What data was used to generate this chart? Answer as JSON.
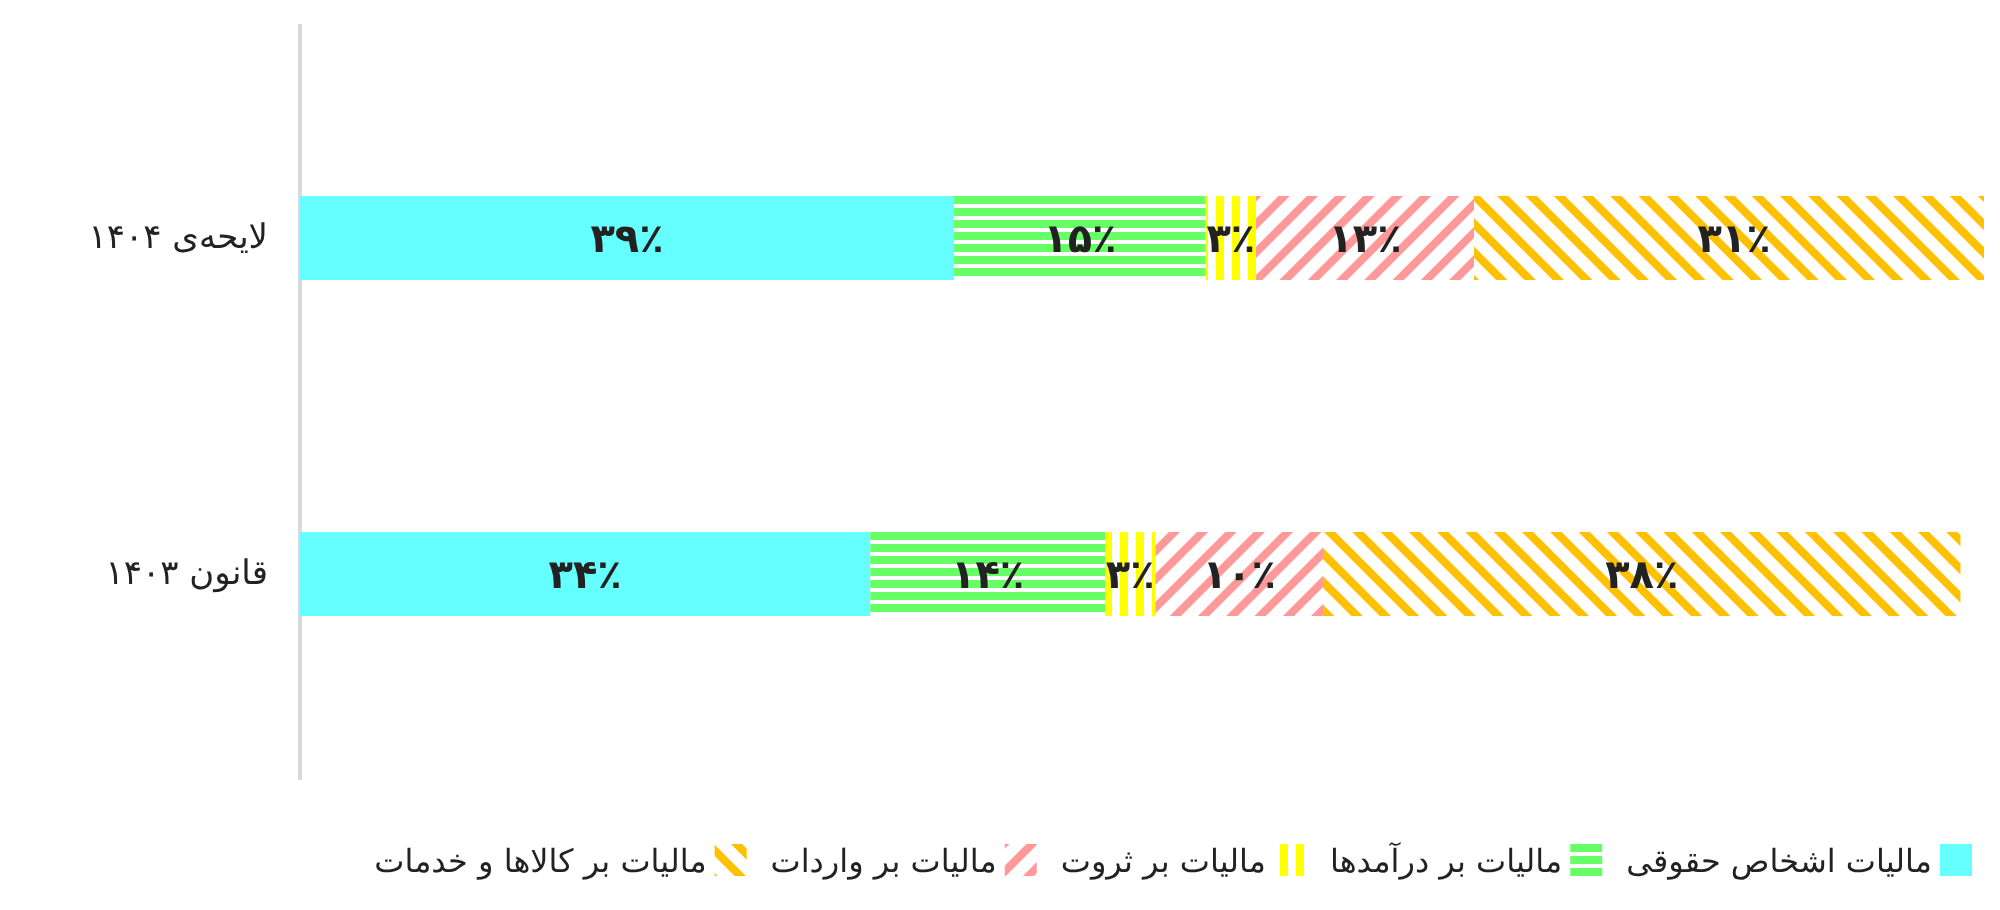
{
  "chart_data": {
    "type": "bar",
    "orientation": "horizontal",
    "stacked": true,
    "legend": "bottom",
    "categories": [
      "لایحه‌ی ۱۴۰۴",
      "قانون ۱۴۰۳"
    ],
    "series": [
      {
        "name": "مالیات اشخاص حقوقی",
        "color": "#66ffff",
        "values": [
          39,
          34
        ],
        "value_labels": [
          "۳۹٪",
          "۳۴٪"
        ]
      },
      {
        "name": "مالیات بر درآمدها",
        "color": "#66ff66",
        "values": [
          15,
          14
        ],
        "value_labels": [
          "۱۵٪",
          "۱۴٪"
        ]
      },
      {
        "name": "مالیات بر ثروت",
        "color": "#ffff00",
        "values": [
          3,
          3
        ],
        "value_labels": [
          "۳٪",
          "۳٪"
        ]
      },
      {
        "name": "مالیات بر واردات",
        "color": "#ff9999",
        "values": [
          13,
          10
        ],
        "value_labels": [
          "۱۳٪",
          "۱۰٪"
        ]
      },
      {
        "name": "مالیات بر کالاها و خدمات",
        "color": "#ffc000",
        "values": [
          31,
          38
        ],
        "value_labels": [
          "۳۱٪",
          "۳۸٪"
        ]
      }
    ]
  }
}
